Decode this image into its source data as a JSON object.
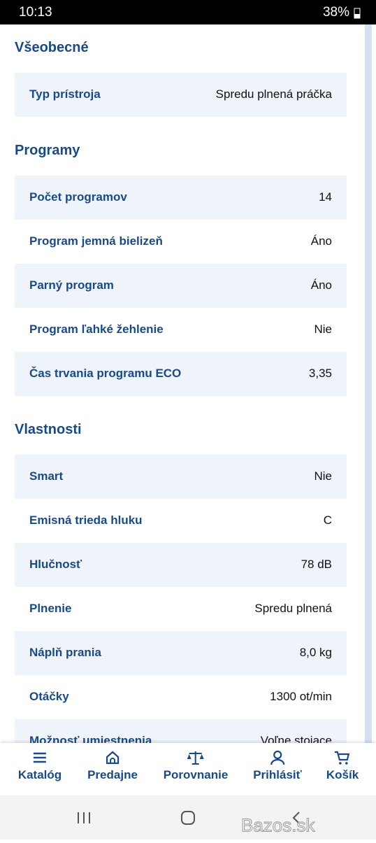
{
  "status_bar": {
    "time": "10:13",
    "battery": "38%"
  },
  "sections": [
    {
      "title": "Všeobecné",
      "rows": [
        [
          "Typ prístroja",
          "Spredu plnená práčka"
        ]
      ]
    },
    {
      "title": "Programy",
      "rows": [
        [
          "Počet programov",
          "14"
        ],
        [
          "Program jemná bielizeň",
          "Áno"
        ],
        [
          "Parný program",
          "Áno"
        ],
        [
          "Program ľahké žehlenie",
          "Nie"
        ],
        [
          "Čas trvania programu ECO",
          "3,35"
        ]
      ]
    },
    {
      "title": "Vlastnosti",
      "rows": [
        [
          "Smart",
          "Nie"
        ],
        [
          "Emisná trieda hluku",
          "C"
        ],
        [
          "Hlučnosť",
          "78 dB"
        ],
        [
          "Plnenie",
          "Spredu plnená"
        ],
        [
          "Náplň prania",
          "8,0 kg"
        ],
        [
          "Otáčky",
          "1300 ot/min"
        ],
        [
          "Možnosť umiestnenia",
          "Voľne stojace"
        ]
      ]
    }
  ],
  "nav": [
    "Katalóg",
    "Predajne",
    "Porovnanie",
    "Prihlásiť",
    "Košík"
  ],
  "watermark": "Bazos.sk"
}
